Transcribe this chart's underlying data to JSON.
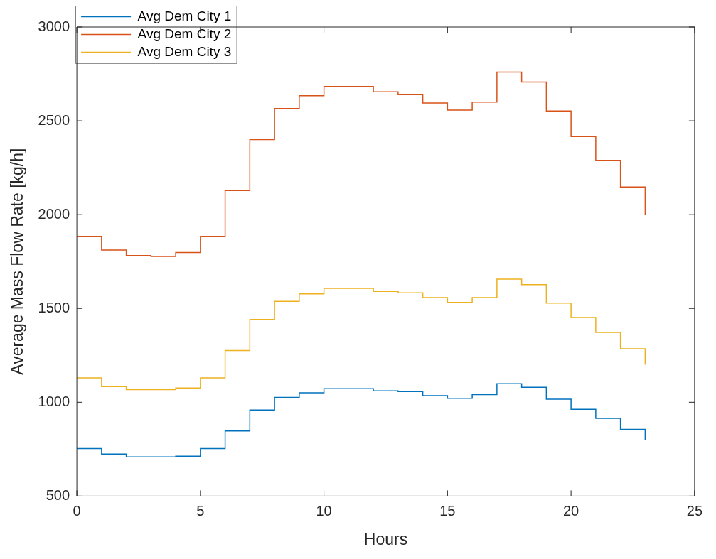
{
  "chart_data": {
    "type": "step",
    "xlabel": "Hours",
    "ylabel": "Average Mass Flow Rate [kg/h]",
    "x": [
      0,
      1,
      2,
      3,
      4,
      5,
      6,
      7,
      8,
      9,
      10,
      11,
      12,
      13,
      14,
      15,
      16,
      17,
      18,
      19,
      20,
      21,
      22,
      23
    ],
    "series": [
      {
        "name": "Avg Dem City 1",
        "color": "#0072bd",
        "values": [
          753,
          724,
          709,
          709,
          713,
          753,
          847,
          959,
          1026,
          1050,
          1072,
          1072,
          1061,
          1057,
          1035,
          1021,
          1041,
          1099,
          1080,
          1016,
          962,
          914,
          855,
          798
        ]
      },
      {
        "name": "Avg Dem City 2",
        "color": "#d95319",
        "values": [
          1884,
          1811,
          1782,
          1777,
          1798,
          1884,
          2128,
          2400,
          2566,
          2634,
          2683,
          2683,
          2655,
          2639,
          2595,
          2557,
          2600,
          2760,
          2707,
          2552,
          2416,
          2289,
          2147,
          1997
        ]
      },
      {
        "name": "Avg Dem City 3",
        "color": "#edb120",
        "values": [
          1130,
          1084,
          1067,
          1067,
          1076,
          1130,
          1276,
          1441,
          1538,
          1578,
          1607,
          1607,
          1591,
          1583,
          1558,
          1532,
          1558,
          1656,
          1627,
          1528,
          1452,
          1372,
          1285,
          1200
        ]
      }
    ],
    "xlim": [
      0,
      25
    ],
    "xticks": [
      0,
      5,
      10,
      15,
      20,
      25
    ],
    "ylim": [
      500,
      3000
    ],
    "yticks": [
      500,
      1000,
      1500,
      2000,
      2500,
      3000
    ],
    "grid": false,
    "legend": "top left"
  }
}
